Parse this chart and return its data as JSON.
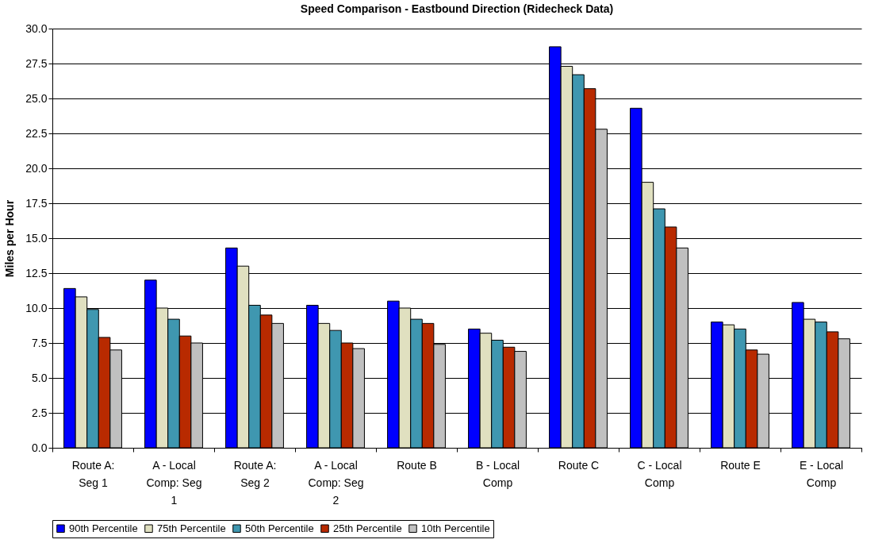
{
  "chart_data": {
    "type": "bar",
    "title": "Speed Comparison - Eastbound Direction  (Ridecheck Data)",
    "ylabel": "Miles per Hour",
    "categories": [
      "Route A: Seg 1",
      "A - Local Comp: Seg 1",
      "Route A: Seg 2",
      "A - Local Comp: Seg 2",
      "Route B",
      "B - Local Comp",
      "Route C",
      "C - Local Comp",
      "Route E",
      "E - Local Comp"
    ],
    "series": [
      {
        "name": "90th Percentile",
        "color": "#0000ff",
        "values": [
          11.4,
          12.0,
          14.3,
          10.2,
          10.5,
          8.5,
          28.7,
          24.3,
          9.0,
          10.4
        ]
      },
      {
        "name": "75th Percentile",
        "color": "#e0e0c0",
        "values": [
          10.8,
          10.0,
          13.0,
          8.9,
          10.0,
          8.2,
          27.3,
          19.0,
          8.8,
          9.2
        ]
      },
      {
        "name": "50th Percentile",
        "color": "#3f97b0",
        "values": [
          9.9,
          9.2,
          10.2,
          8.4,
          9.2,
          7.7,
          26.7,
          17.1,
          8.5,
          9.0
        ]
      },
      {
        "name": "25th Percentile",
        "color": "#b82a00",
        "values": [
          7.9,
          8.0,
          9.5,
          7.5,
          8.9,
          7.2,
          25.7,
          15.8,
          7.0,
          8.3
        ]
      },
      {
        "name": "10th Percentile",
        "color": "#c0c0c0",
        "values": [
          7.0,
          7.5,
          8.9,
          7.1,
          7.4,
          6.9,
          22.8,
          14.3,
          6.7,
          7.8
        ]
      }
    ],
    "ylim": [
      0,
      30
    ],
    "yticks": [
      {
        "value": 0,
        "label": "0.0"
      },
      {
        "value": 2.5,
        "label": "2.5"
      },
      {
        "value": 5,
        "label": "5.0"
      },
      {
        "value": 7.5,
        "label": "7.5"
      },
      {
        "value": 10,
        "label": "10.0"
      },
      {
        "value": 12.5,
        "label": "12.5"
      },
      {
        "value": 15,
        "label": "15.0"
      },
      {
        "value": 17.5,
        "label": "17.5"
      },
      {
        "value": 20,
        "label": "20.0"
      },
      {
        "value": 22.5,
        "label": "22.5"
      },
      {
        "value": 25,
        "label": "25.0"
      },
      {
        "value": 27.5,
        "label": "27.5"
      },
      {
        "value": 30,
        "label": "30.0"
      }
    ],
    "grid": "y",
    "legend": "bottom"
  }
}
